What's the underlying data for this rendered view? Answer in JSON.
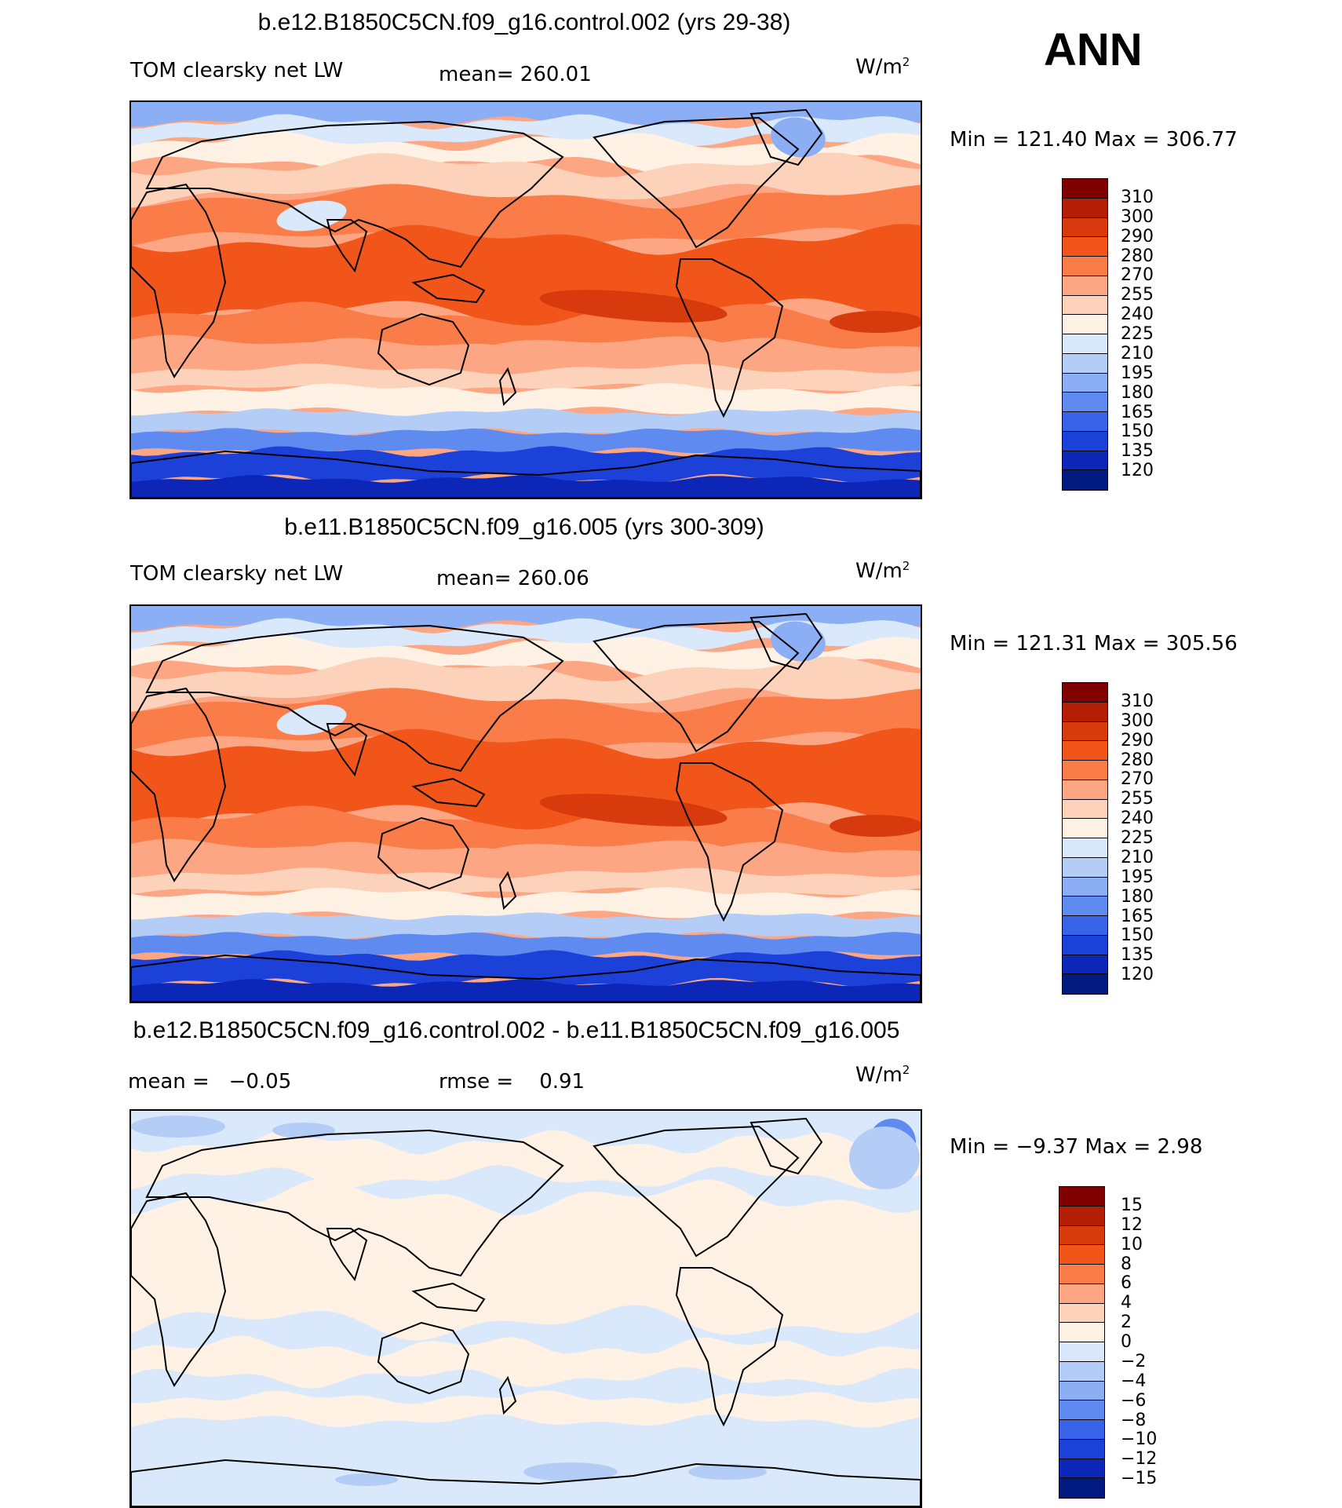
{
  "season": "ANN",
  "panels": [
    {
      "title": "b.e12.B1850C5CN.f09_g16.control.002 (yrs 29-38)",
      "left_label": "TOM clearsky net LW",
      "center_label": "mean= 260.01",
      "units": "W/m",
      "units_sup": "2",
      "min_label": "Min = ",
      "min_value": "121.40",
      "max_label": "Max = ",
      "max_value": "306.77"
    },
    {
      "title": "b.e11.B1850C5CN.f09_g16.005 (yrs 300-309)",
      "left_label": "TOM clearsky net LW",
      "center_label": "mean= 260.06",
      "units": "W/m",
      "units_sup": "2",
      "min_label": "Min = ",
      "min_value": "121.31",
      "max_label": "Max = ",
      "max_value": "305.56"
    },
    {
      "title": "b.e12.B1850C5CN.f09_g16.control.002 - b.e11.B1850C5CN.f09_g16.005",
      "left_label": "mean =   −0.05",
      "center_label": "rmse =    0.91",
      "units": "W/m",
      "units_sup": "2",
      "min_label": "Min = ",
      "min_value": "−9.37",
      "max_label": "Max = ",
      "max_value": "2.98"
    }
  ],
  "colorbar_abs": {
    "labels": [
      "310",
      "300",
      "290",
      "280",
      "270",
      "255",
      "240",
      "225",
      "210",
      "195",
      "180",
      "165",
      "150",
      "135",
      "120"
    ],
    "colors": [
      "#800000",
      "#b41e05",
      "#d73a0d",
      "#f2551a",
      "#fa7c48",
      "#fca684",
      "#fdd2ba",
      "#fff1e4",
      "#d9e9fb",
      "#b4cdf7",
      "#8caef4",
      "#5f8bf0",
      "#3863e8",
      "#1b41d9",
      "#0c27b8",
      "#001a80"
    ]
  },
  "colorbar_diff": {
    "labels": [
      "15",
      "12",
      "10",
      "8",
      "6",
      "4",
      "2",
      "0",
      "−2",
      "−4",
      "−6",
      "−8",
      "−10",
      "−12",
      "−15"
    ],
    "colors": [
      "#800000",
      "#b41e05",
      "#d73a0d",
      "#f2551a",
      "#fa7c48",
      "#fca684",
      "#fdd2ba",
      "#fff1e4",
      "#d9e9fb",
      "#b4cdf7",
      "#8caef4",
      "#5f8bf0",
      "#3863e8",
      "#1b41d9",
      "#0c27b8",
      "#001a80"
    ]
  },
  "field_colors": {
    "polar_south": "#1b41d9",
    "polar_south_edge": "#0c27b8",
    "south_mid": "#5f8bf0",
    "south_cool": "#b4cdf7",
    "cream": "#fff1e4",
    "peach": "#fdd2ba",
    "salmon": "#fca684",
    "orange": "#fa7c48",
    "red_orange": "#f2551a",
    "deep_red": "#d73a0d",
    "dark_red": "#b41e05",
    "north_light": "#d9e9fb",
    "north_blue": "#8caef4",
    "diff_blue": "#d9e9fb",
    "diff_peach": "#fff1e4",
    "diff_mid": "#b4cdf7",
    "diff_strong": "#5f8bf0"
  }
}
